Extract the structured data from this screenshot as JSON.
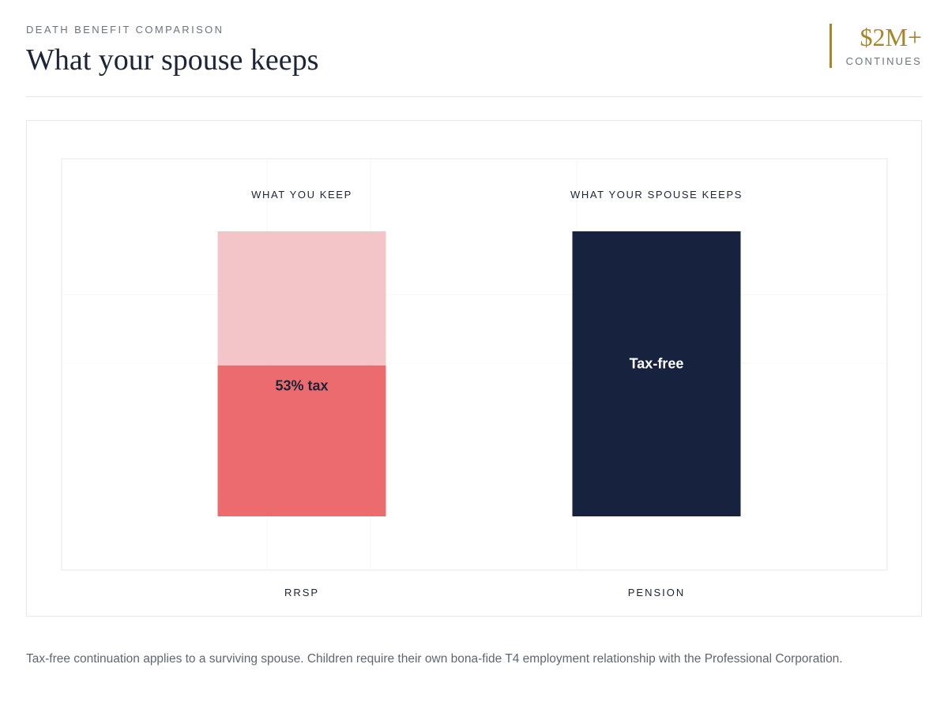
{
  "header": {
    "eyebrow": "DEATH BENEFIT COMPARISON",
    "title": "What your spouse keeps",
    "stat_value": "$2M+",
    "stat_label": "CONTINUES"
  },
  "colors": {
    "accent_gold": "#a8852a",
    "navy": "#17223f",
    "tax_red": "#ec6b6e",
    "kept_pink": "#f3c5c8"
  },
  "chart_data": {
    "type": "bar",
    "stacked": true,
    "categories": [
      "RRSP",
      "PENSION"
    ],
    "column_headers": [
      "WHAT YOU KEEP",
      "WHAT YOUR SPOUSE KEEPS"
    ],
    "series": [
      {
        "values": [
          53,
          100
        ],
        "labels": [
          "53% tax",
          "Tax-free"
        ],
        "colors": [
          "#ec6b6e",
          "#17223f"
        ]
      },
      {
        "values": [
          47,
          0
        ],
        "labels": [
          "",
          ""
        ],
        "colors": [
          "#f3c5c8",
          "#17223f"
        ]
      }
    ],
    "ylim": [
      0,
      100
    ],
    "grid": true,
    "legend": "none"
  },
  "footnote": "Tax-free continuation applies to a surviving spouse. Children require their own bona-fide T4 employment relationship with the Professional Corporation."
}
